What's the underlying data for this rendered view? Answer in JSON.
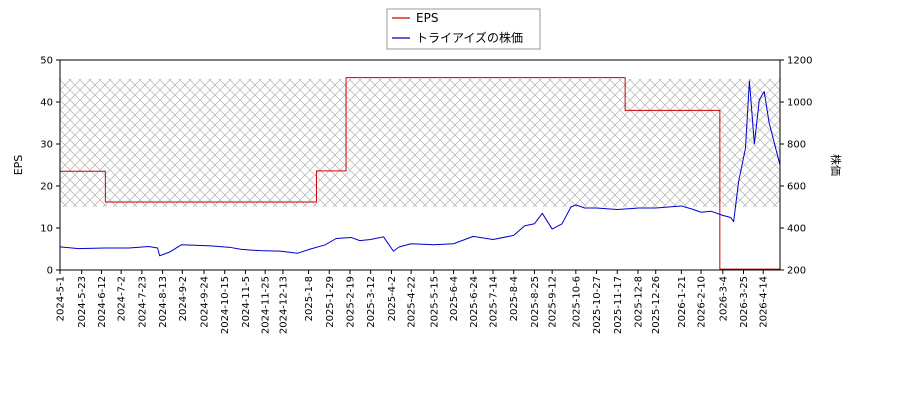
{
  "chart_data": {
    "type": "line",
    "title": "",
    "xlabel": "",
    "ylabel_left": "EPS",
    "ylabel_right": "株価",
    "ylim_left": [
      0,
      50
    ],
    "ylim_right": [
      200,
      1200
    ],
    "yticks_left": [
      "0",
      "10",
      "20",
      "30",
      "40",
      "50"
    ],
    "yticks_right": [
      "200",
      "400",
      "600",
      "800",
      "1000",
      "1200"
    ],
    "xlim": [
      "2024-05-01",
      "2026-05-01"
    ],
    "xticks": [
      "2024-5-1",
      "2024-5-23",
      "2024-6-12",
      "2024-7-2",
      "2024-7-23",
      "2024-8-13",
      "2024-9-2",
      "2024-9-24",
      "2024-10-15",
      "2024-11-5",
      "2024-11-25",
      "2024-12-13",
      "2025-1-8",
      "2025-1-29",
      "2025-2-19",
      "2025-3-12",
      "2025-4-2",
      "2025-4-22",
      "2025-5-15",
      "2025-6-4",
      "2025-6-24",
      "2025-7-14",
      "2025-8-4",
      "2025-8-25",
      "2025-9-12",
      "2025-10-6",
      "2025-10-27",
      "2025-11-17",
      "2025-12-8",
      "2025-12-26",
      "2026-1-21",
      "2026-2-10",
      "2026-3-4",
      "2026-3-25",
      "2026-4-14"
    ],
    "legend_position": "top-center",
    "hatched_band": {
      "y_from": 15,
      "y_to": 45.5,
      "axis": "left"
    },
    "series": [
      {
        "name": "EPS",
        "color": "#cc0000",
        "axis": "left",
        "step": true,
        "points": [
          [
            "2024-05-01",
            23.5
          ],
          [
            "2024-06-15",
            23.5
          ],
          [
            "2024-06-16",
            16.2
          ],
          [
            "2025-01-15",
            16.2
          ],
          [
            "2025-01-16",
            23.6
          ],
          [
            "2025-02-14",
            23.6
          ],
          [
            "2025-02-15",
            45.8
          ],
          [
            "2025-11-24",
            45.8
          ],
          [
            "2025-11-25",
            38.0
          ],
          [
            "2026-02-28",
            38.0
          ],
          [
            "2026-03-01",
            0.2
          ],
          [
            "2026-05-01",
            0.2
          ]
        ]
      },
      {
        "name": "トライアイズの株価",
        "color": "#0000cc",
        "axis": "right",
        "step": false,
        "points": [
          [
            "2024-05-01",
            310
          ],
          [
            "2024-05-20",
            302
          ],
          [
            "2024-06-15",
            305
          ],
          [
            "2024-07-10",
            305
          ],
          [
            "2024-07-30",
            312
          ],
          [
            "2024-08-08",
            305
          ],
          [
            "2024-08-10",
            268
          ],
          [
            "2024-08-20",
            285
          ],
          [
            "2024-09-01",
            320
          ],
          [
            "2024-10-01",
            315
          ],
          [
            "2024-10-20",
            308
          ],
          [
            "2024-11-01",
            298
          ],
          [
            "2024-11-20",
            292
          ],
          [
            "2024-12-10",
            290
          ],
          [
            "2024-12-28",
            280
          ],
          [
            "2025-01-10",
            300
          ],
          [
            "2025-01-25",
            320
          ],
          [
            "2025-02-05",
            350
          ],
          [
            "2025-02-20",
            355
          ],
          [
            "2025-03-01",
            340
          ],
          [
            "2025-03-12",
            345
          ],
          [
            "2025-03-25",
            358
          ],
          [
            "2025-04-04",
            290
          ],
          [
            "2025-04-10",
            310
          ],
          [
            "2025-04-22",
            325
          ],
          [
            "2025-05-15",
            320
          ],
          [
            "2025-06-04",
            325
          ],
          [
            "2025-06-24",
            360
          ],
          [
            "2025-07-14",
            345
          ],
          [
            "2025-08-04",
            365
          ],
          [
            "2025-08-15",
            410
          ],
          [
            "2025-08-25",
            420
          ],
          [
            "2025-09-02",
            470
          ],
          [
            "2025-09-12",
            395
          ],
          [
            "2025-09-22",
            420
          ],
          [
            "2025-10-01",
            500
          ],
          [
            "2025-10-06",
            510
          ],
          [
            "2025-10-15",
            495
          ],
          [
            "2025-10-27",
            495
          ],
          [
            "2025-11-17",
            488
          ],
          [
            "2025-12-08",
            495
          ],
          [
            "2025-12-26",
            495
          ],
          [
            "2026-01-21",
            505
          ],
          [
            "2026-02-01",
            490
          ],
          [
            "2026-02-10",
            475
          ],
          [
            "2026-02-20",
            480
          ],
          [
            "2026-03-04",
            460
          ],
          [
            "2026-03-12",
            450
          ],
          [
            "2026-03-15",
            430
          ],
          [
            "2026-03-20",
            620
          ],
          [
            "2026-03-27",
            780
          ],
          [
            "2026-03-31",
            1100
          ],
          [
            "2026-04-05",
            800
          ],
          [
            "2026-04-10",
            1010
          ],
          [
            "2026-04-15",
            1050
          ],
          [
            "2026-04-20",
            900
          ],
          [
            "2026-05-01",
            700
          ]
        ]
      }
    ]
  }
}
